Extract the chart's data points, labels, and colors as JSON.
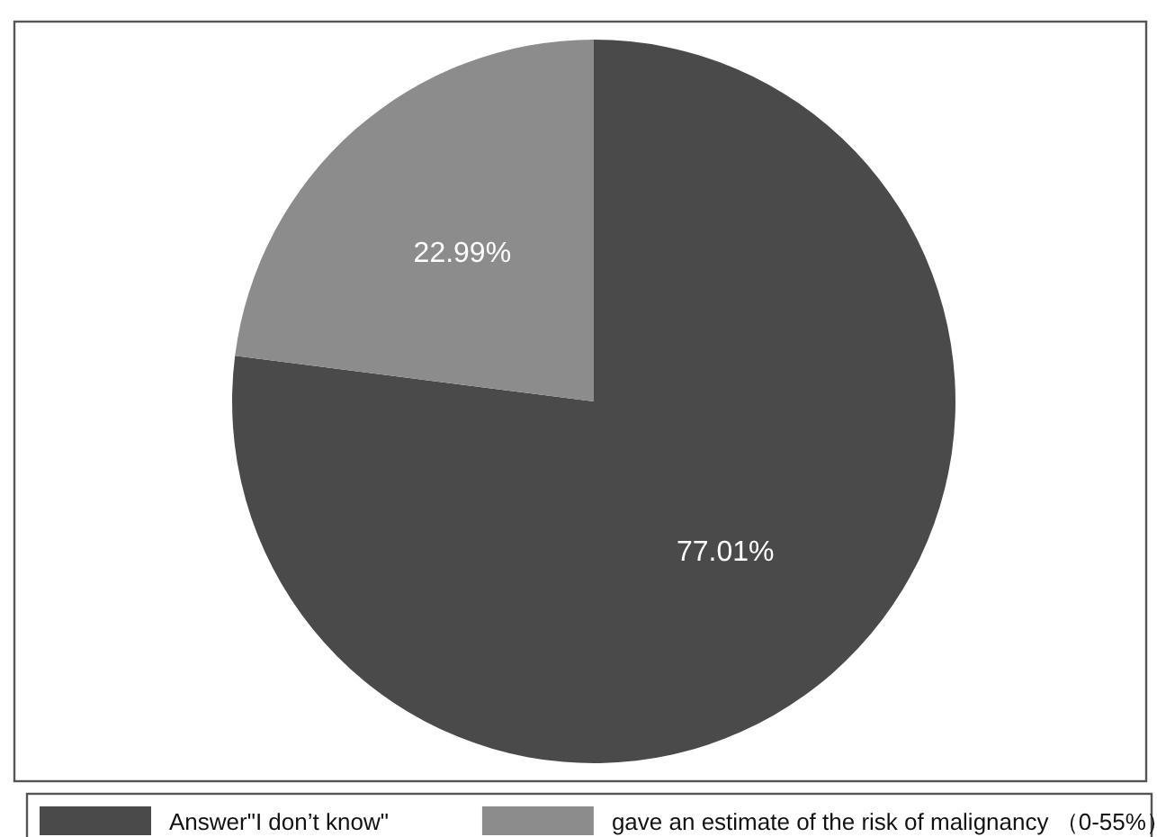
{
  "chart_data": {
    "type": "pie",
    "categories": [
      "Answer\"I don’t know\"",
      "gave an estimate of the risk of malignancy （0-55%）"
    ],
    "values": [
      77.01,
      22.99
    ],
    "colors": [
      "#4a4a4a",
      "#8c8c8c"
    ],
    "value_labels": [
      "77.01%",
      "22.99%"
    ],
    "legend": "bottom"
  }
}
